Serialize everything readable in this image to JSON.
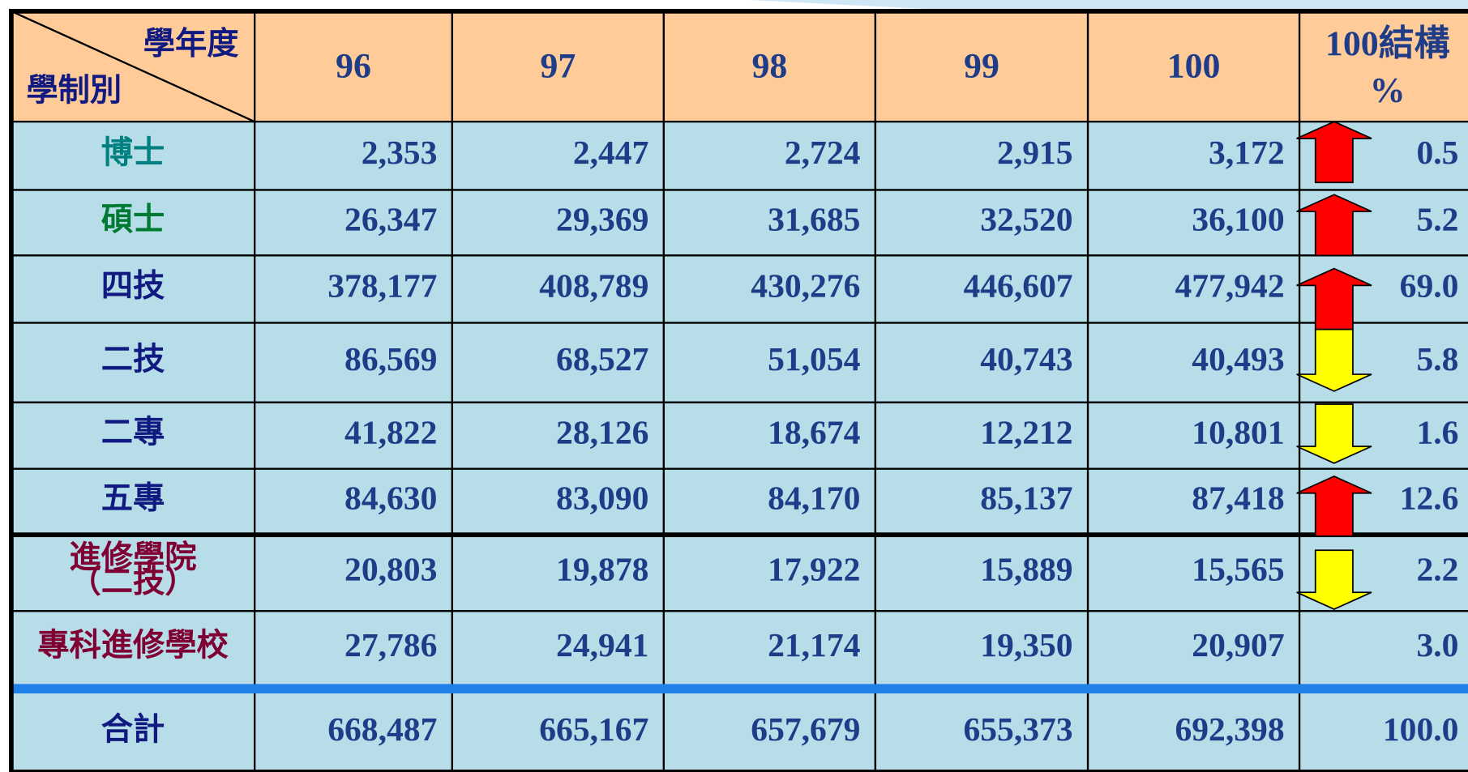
{
  "header": {
    "row_title": "學年度",
    "col_title": "學制別",
    "years": [
      "96",
      "97",
      "98",
      "99",
      "100"
    ],
    "structure": [
      "100結構",
      "%"
    ]
  },
  "table": {
    "rows": [
      {
        "label": [
          "博士"
        ],
        "values": [
          "2,353",
          "2,447",
          "2,724",
          "2,915",
          "3,172"
        ],
        "percent": "0.5"
      },
      {
        "label": [
          "碩士"
        ],
        "values": [
          "26,347",
          "29,369",
          "31,685",
          "32,520",
          "36,100"
        ],
        "percent": "5.2"
      },
      {
        "label": [
          "四技"
        ],
        "values": [
          "378,177",
          "408,789",
          "430,276",
          "446,607",
          "477,942"
        ],
        "percent": "69.0"
      },
      {
        "label": [
          "二技"
        ],
        "values": [
          "86,569",
          "68,527",
          "51,054",
          "40,743",
          "40,493"
        ],
        "percent": "5.8"
      },
      {
        "label": [
          "二專"
        ],
        "values": [
          "41,822",
          "28,126",
          "18,674",
          "12,212",
          "10,801"
        ],
        "percent": "1.6"
      },
      {
        "label": [
          "五專"
        ],
        "values": [
          "84,630",
          "83,090",
          "84,170",
          "85,137",
          "87,418"
        ],
        "percent": "12.6"
      },
      {
        "label": [
          "進修學院",
          "（二技）"
        ],
        "values": [
          "20,803",
          "19,878",
          "17,922",
          "15,889",
          "15,565"
        ],
        "percent": "2.2"
      },
      {
        "label": [
          "專科進修學校"
        ],
        "values": [
          "27,786",
          "24,941",
          "21,174",
          "19,350",
          "20,907"
        ],
        "percent": "3.0"
      },
      {
        "label": [
          "合計"
        ],
        "values": [
          "668,487",
          "665,167",
          "657,679",
          "655,373",
          "692,398"
        ],
        "percent": "100.0"
      }
    ]
  }
}
